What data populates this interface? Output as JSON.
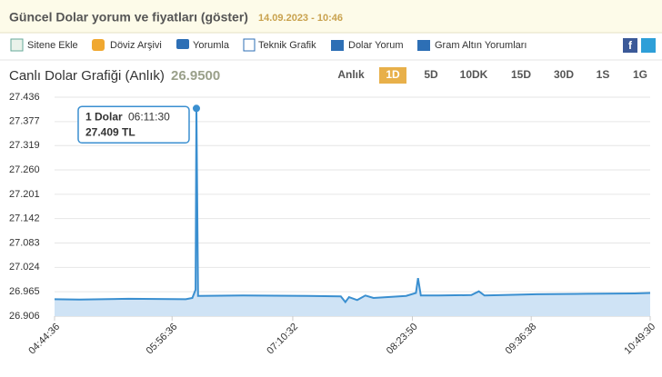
{
  "header": {
    "title": "Güncel Dolar yorum ve fiyatları (göster)",
    "date": "14.09.2023 - 10:46"
  },
  "toolbar": [
    "Sitene Ekle",
    "Döviz Arşivi",
    "Yorumla",
    "Teknik Grafik",
    "Dolar Yorum",
    "Gram Altın Yorumları"
  ],
  "chart_header": {
    "title": "Canlı Dolar Grafiği (Anlık)",
    "price": "26.9500"
  },
  "ranges": [
    {
      "label": "Anlık",
      "active": false
    },
    {
      "label": "1D",
      "active": true
    },
    {
      "label": "5D",
      "active": false
    },
    {
      "label": "10DK",
      "active": false
    },
    {
      "label": "15D",
      "active": false
    },
    {
      "label": "30D",
      "active": false
    },
    {
      "label": "1S",
      "active": false
    },
    {
      "label": "1G",
      "active": false
    }
  ],
  "chart_data": {
    "type": "line",
    "xlim": [
      "04:44:36",
      "10:49:30"
    ],
    "xticks": [
      "04:44:36",
      "05:56:36",
      "07:10:32",
      "08:23:50",
      "09:36:38",
      "10:49:30"
    ],
    "ylim": [
      26.906,
      27.436
    ],
    "yticks": [
      26.906,
      26.965,
      27.024,
      27.083,
      27.142,
      27.201,
      {
        "value": 27.26,
        "label": "27.260"
      },
      27.319,
      27.377,
      27.436
    ],
    "grid": true,
    "series": [
      {
        "name": "1 Dolar",
        "color": "#3a8fd0",
        "area_color": "#cfe3f5",
        "x": [
          "04:44:36",
          "05:00:00",
          "05:30:00",
          "06:05:00",
          "06:09:00",
          "06:11:00",
          "06:11:30",
          "06:12:30",
          "06:40:00",
          "07:20:00",
          "07:40:00",
          "07:42:44",
          "07:45:00",
          "07:50:00",
          "07:55:00",
          "08:00:00",
          "08:20:00",
          "08:26:00",
          "08:27:16",
          "08:29:00",
          "08:40:00",
          "09:00:00",
          "09:04:34",
          "09:08:00",
          "09:40:00",
          "10:10:00",
          "10:40:00",
          "10:49:30"
        ],
        "values": [
          26.947,
          26.946,
          26.948,
          26.947,
          26.95,
          26.97,
          27.409,
          26.955,
          26.956,
          26.955,
          26.954,
          26.94,
          26.952,
          26.945,
          26.956,
          26.95,
          26.955,
          26.962,
          26.998,
          26.956,
          26.956,
          26.957,
          26.966,
          26.956,
          26.959,
          26.96,
          26.961,
          26.962
        ]
      }
    ],
    "tooltip": {
      "name": "1 Dolar",
      "time": "06:11:30",
      "value_label": "27.409 TL"
    }
  }
}
